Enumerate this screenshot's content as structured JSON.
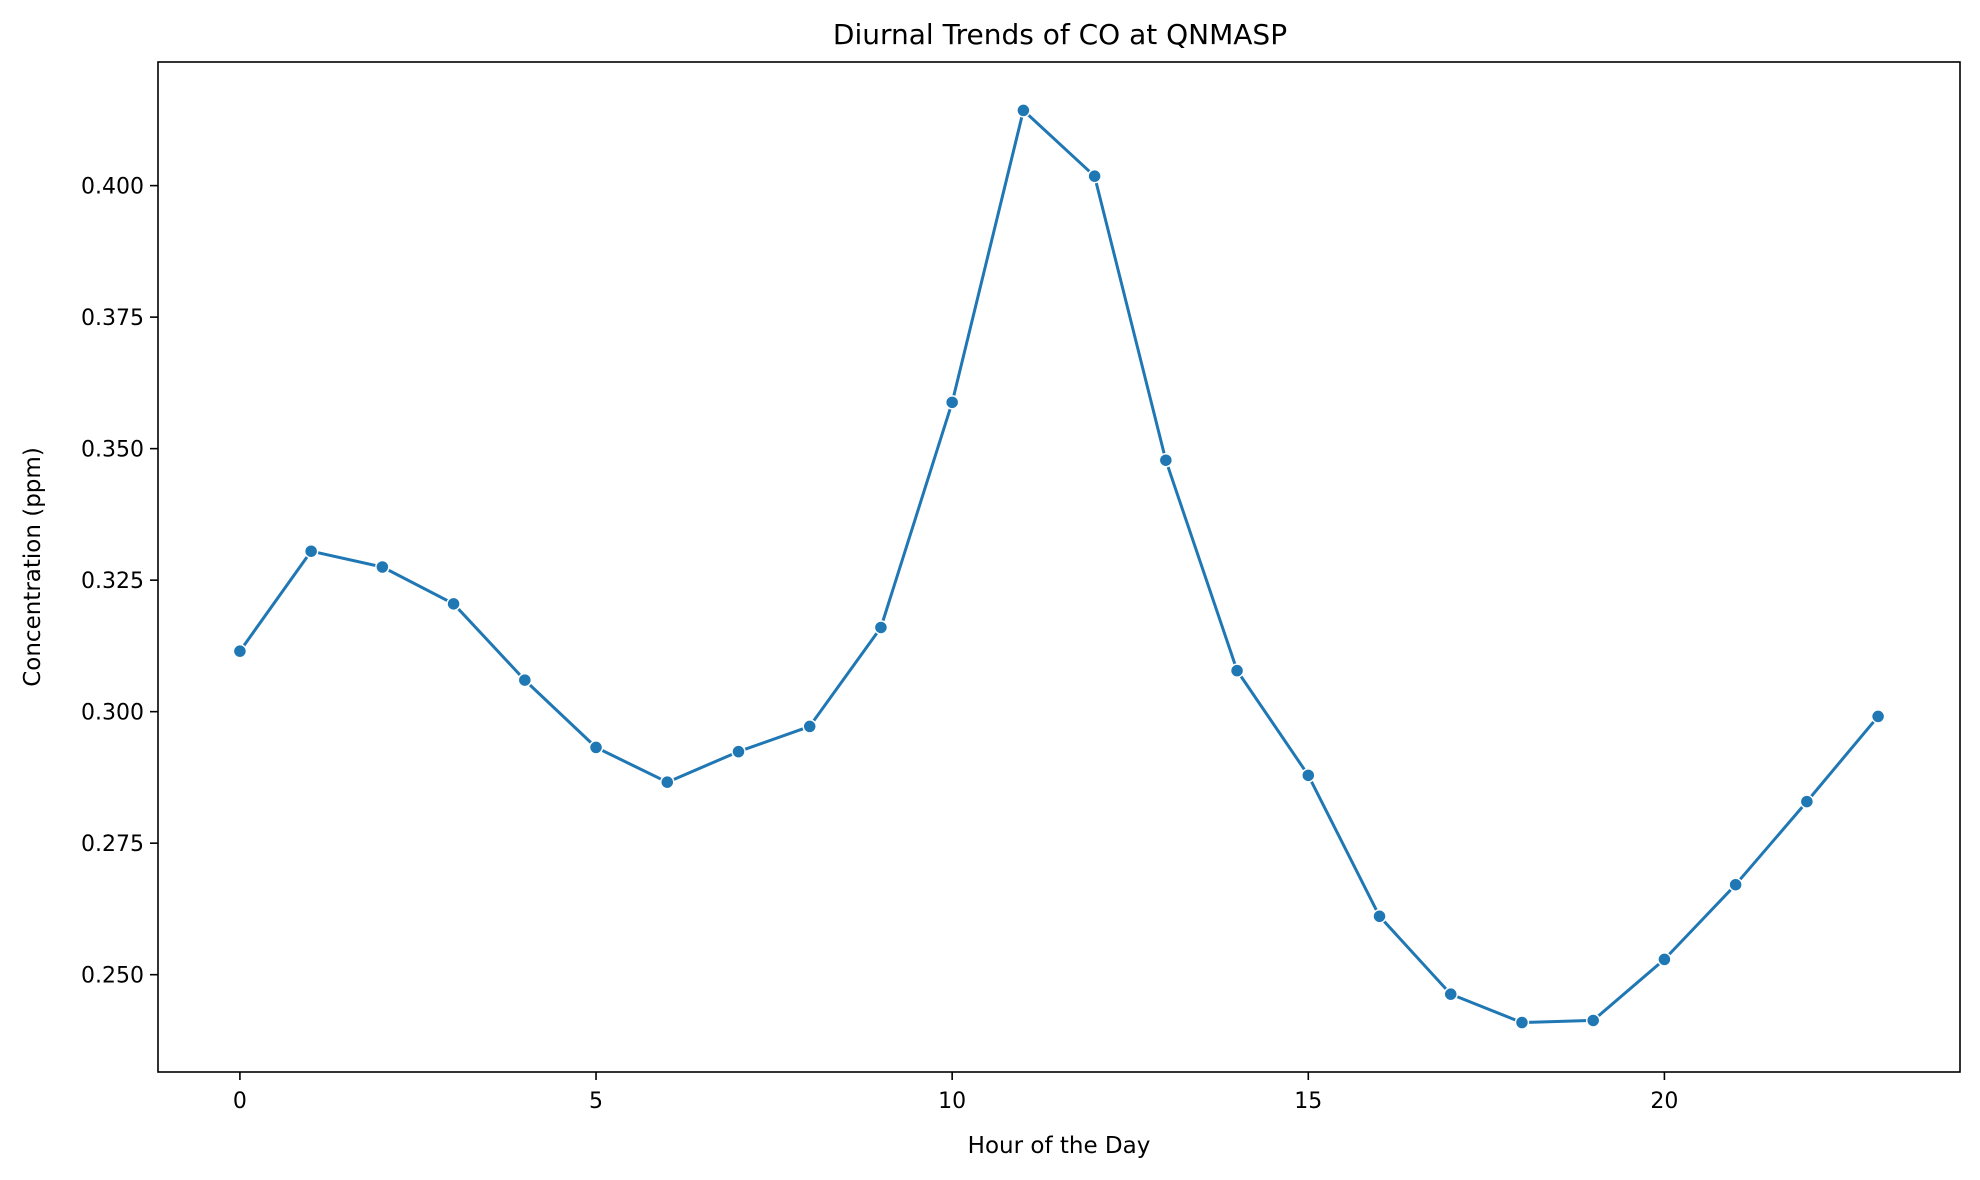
{
  "chart_data": {
    "type": "line",
    "title": "Diurnal Trends of CO at QNMASP",
    "xlabel": "Hour of the Day",
    "ylabel": "Concentration (ppm)",
    "x": [
      0,
      1,
      2,
      3,
      4,
      5,
      6,
      7,
      8,
      9,
      10,
      11,
      12,
      13,
      14,
      15,
      16,
      17,
      18,
      19,
      20,
      21,
      22,
      23
    ],
    "series": [
      {
        "values": [
          0.3115,
          0.3305,
          0.3275,
          0.3205,
          0.306,
          0.2932,
          0.2866,
          0.2924,
          0.2972,
          0.316,
          0.3588,
          0.4143,
          0.4018,
          0.3478,
          0.3078,
          0.2879,
          0.2611,
          0.2463,
          0.2409,
          0.2413,
          0.2529,
          0.2671,
          0.2829,
          0.2991
        ],
        "color": "#1f77b4",
        "marker": "circle"
      }
    ],
    "xlim": [
      -1.15,
      24.15
    ],
    "ylim": [
      0.2315,
      0.4235
    ],
    "xticks": [
      0,
      5,
      10,
      15,
      20
    ],
    "xtick_labels": [
      "0",
      "5",
      "10",
      "15",
      "20"
    ],
    "yticks": [
      0.25,
      0.275,
      0.3,
      0.325,
      0.35,
      0.375,
      0.4
    ],
    "ytick_labels": [
      "0.250",
      "0.275",
      "0.300",
      "0.325",
      "0.350",
      "0.375",
      "0.400"
    ],
    "grid": false,
    "legend": "none"
  }
}
